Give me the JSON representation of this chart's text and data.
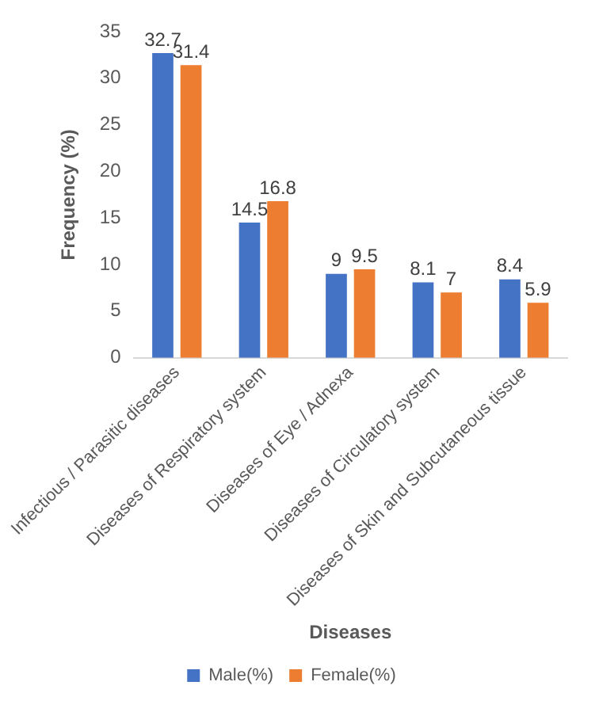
{
  "chart_data": {
    "type": "bar",
    "xlabel": "Diseases",
    "ylabel": "Frequency (%)",
    "categories": [
      "Infectious / Parasitic diseases",
      "Diseases of Respiratory system",
      "Diseases of Eye / Adnexa",
      "Diseases of Circulatory system",
      "Diseases of Skin and Subcutaneous tissue"
    ],
    "series": [
      {
        "name": "Male(%)",
        "color": "#4472c4",
        "values": [
          32.7,
          14.5,
          9,
          8.1,
          8.4
        ]
      },
      {
        "name": "Female(%)",
        "color": "#ed7d31",
        "values": [
          31.4,
          16.8,
          9.5,
          7,
          5.9
        ]
      }
    ],
    "ylim": [
      0,
      35
    ],
    "yticks": [
      0,
      5,
      10,
      15,
      20,
      25,
      30,
      35
    ],
    "grid": false,
    "legend": "bottom",
    "data_labels": true
  }
}
